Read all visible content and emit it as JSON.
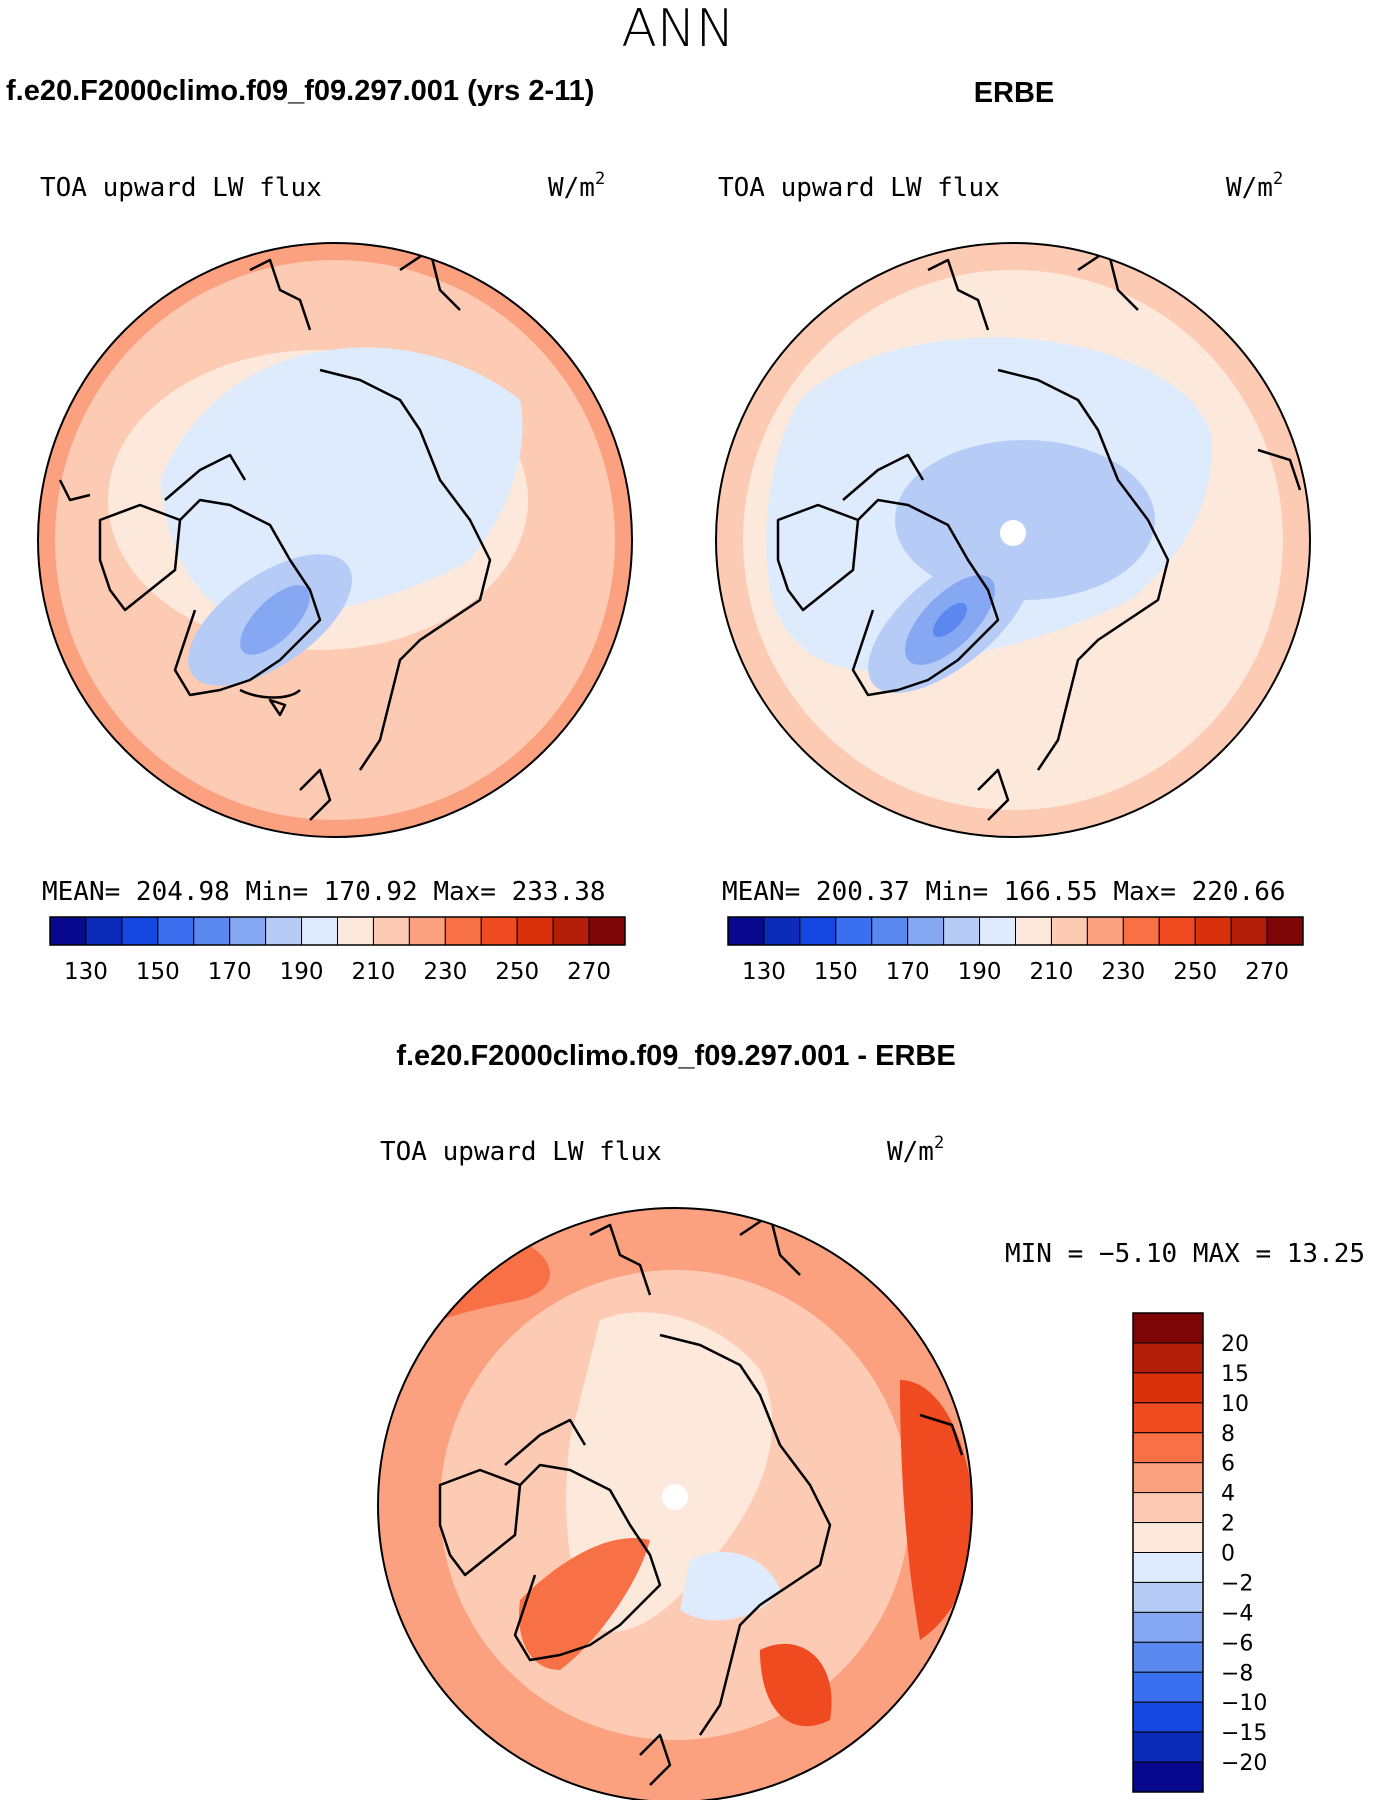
{
  "page": {
    "title": "ANN",
    "subtitle_model": "f.e20.F2000climo.f09_f09.297.001 (yrs 2-11)",
    "subtitle_obs": "ERBE",
    "subtitle_diff": "f.e20.F2000climo.f09_f09.297.001 - ERBE"
  },
  "panels": {
    "model": {
      "variable": "TOA upward LW flux",
      "units": "W/m",
      "units_exp": "2",
      "stats": "MEAN= 204.98   Min= 170.92   Max= 233.38",
      "mean": 204.98,
      "min": 170.92,
      "max": 233.38
    },
    "obs": {
      "variable": "TOA upward LW flux",
      "units": "W/m",
      "units_exp": "2",
      "stats": "MEAN= 200.37   Min= 166.55   Max= 220.66",
      "mean": 200.37,
      "min": 166.55,
      "max": 220.66
    },
    "diff": {
      "variable": "TOA upward LW flux",
      "units": "W/m",
      "units_exp": "2",
      "stats": "MIN =  −5.10 MAX =   13.25",
      "min": -5.1,
      "max": 13.25
    }
  },
  "colorbars": {
    "abs": {
      "colors": [
        "#08088e",
        "#0c2bb8",
        "#1448e0",
        "#3a6ff0",
        "#5b88ee",
        "#86a8f2",
        "#b6ccf6",
        "#ddebfc",
        "#fde9dc",
        "#fdcbb4",
        "#fca180",
        "#f87146",
        "#ef4a20",
        "#d8310c",
        "#b21e08",
        "#7e0606"
      ],
      "ticks": [
        "130",
        "150",
        "170",
        "190",
        "210",
        "230",
        "250",
        "270"
      ]
    },
    "diff": {
      "colors": [
        "#7e0606",
        "#b21e08",
        "#d8310c",
        "#ef4a20",
        "#f87146",
        "#fca180",
        "#fdcbb4",
        "#fde9dc",
        "#ddebfc",
        "#b6ccf6",
        "#86a8f2",
        "#5b88ee",
        "#3a6ff0",
        "#1448e0",
        "#0c2bb8",
        "#08088e"
      ],
      "ticks": [
        "20",
        "15",
        "10",
        "8",
        "6",
        "4",
        "2",
        "0",
        "−2",
        "−4",
        "−6",
        "−8",
        "−10",
        "−15",
        "−20"
      ]
    }
  }
}
